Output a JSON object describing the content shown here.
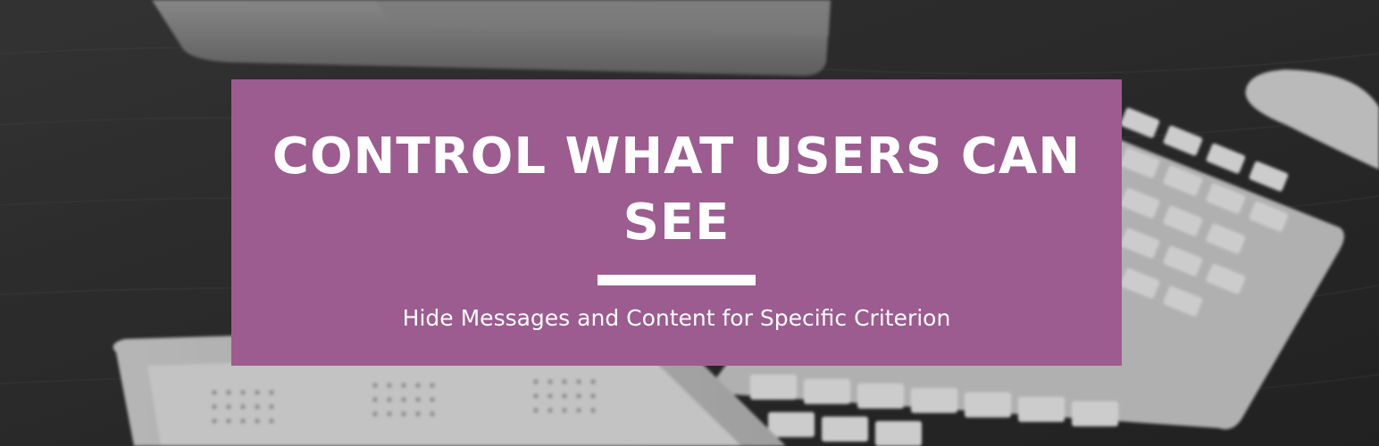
{
  "banner": {
    "headline": "CONTROL WHAT USERS CAN SEE",
    "subtitle": "Hide Messages and Content for Specific Criterion"
  },
  "colors": {
    "panel": "#9c5c8f",
    "text": "#ffffff",
    "divider": "#ffffff"
  },
  "background": {
    "scene": "grayscale desk photo with monitor, keyboard, tablet calendar and mouse"
  }
}
